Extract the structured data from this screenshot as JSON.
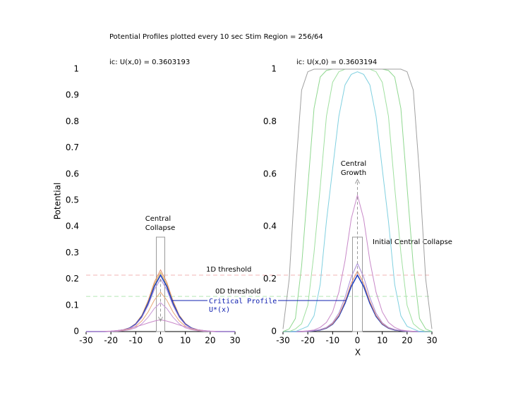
{
  "chart_data": [
    {
      "type": "line",
      "title": "Potential Profiles plotted every 10 sec  Stim Region = 256/64",
      "subtitle": "ic:  U(x,0) = 0.3603193",
      "ylabel": "Potential",
      "annotation": [
        "Central",
        "Collapse"
      ],
      "critical_label": [
        "Critical Profile",
        "U*(x)"
      ],
      "thresholds": [
        {
          "label": "1D threshold",
          "value": 0.215,
          "color": "#f2b4b4"
        },
        {
          "label": "0D threshold",
          "value": 0.134,
          "color": "#b4e6b4"
        }
      ],
      "stim": {
        "xlim": [
          -1.7,
          1.7
        ],
        "height": 0.36
      },
      "xlim": [
        -30,
        30
      ],
      "ylim": [
        0,
        1
      ],
      "xticks": [
        -30,
        -20,
        -10,
        0,
        10,
        20,
        30
      ],
      "yticks": [
        0,
        0.1,
        0.2,
        0.3,
        0.4,
        0.5,
        0.6,
        0.7,
        0.8,
        0.9,
        1
      ],
      "x": [
        -30,
        -27.5,
        -25,
        -22.5,
        -20,
        -17.5,
        -15,
        -12.5,
        -10,
        -7.5,
        -5,
        -2.5,
        0,
        2.5,
        5,
        7.5,
        10,
        12.5,
        15,
        17.5,
        20,
        22.5,
        25,
        27.5,
        30
      ],
      "series": [
        {
          "color": "#e08a6a",
          "values": [
            0,
            0,
            0,
            0,
            0.001,
            0.003,
            0.007,
            0.014,
            0.031,
            0.063,
            0.118,
            0.188,
            0.235,
            0.188,
            0.118,
            0.063,
            0.031,
            0.014,
            0.007,
            0.003,
            0.001,
            0,
            0,
            0,
            0
          ]
        },
        {
          "color": "#d8b050",
          "values": [
            0,
            0,
            0,
            0,
            0.001,
            0.003,
            0.007,
            0.014,
            0.029,
            0.061,
            0.113,
            0.18,
            0.225,
            0.18,
            0.113,
            0.061,
            0.029,
            0.014,
            0.007,
            0.003,
            0.001,
            0,
            0,
            0,
            0
          ]
        },
        {
          "color": "#2040c0",
          "values": [
            0,
            0,
            0,
            0,
            0.001,
            0.003,
            0.006,
            0.013,
            0.028,
            0.058,
            0.108,
            0.172,
            0.215,
            0.172,
            0.108,
            0.058,
            0.028,
            0.013,
            0.006,
            0.003,
            0.001,
            0,
            0,
            0,
            0
          ]
        },
        {
          "color": "#a88ad8",
          "values": [
            0,
            0,
            0,
            0,
            0.001,
            0.002,
            0.006,
            0.012,
            0.026,
            0.054,
            0.1,
            0.16,
            0.2,
            0.16,
            0.1,
            0.054,
            0.026,
            0.012,
            0.006,
            0.002,
            0.001,
            0,
            0,
            0,
            0
          ]
        },
        {
          "color": "#e8a878",
          "values": [
            0,
            0,
            0,
            0,
            0.001,
            0.002,
            0.005,
            0.009,
            0.02,
            0.041,
            0.075,
            0.12,
            0.15,
            0.12,
            0.075,
            0.041,
            0.02,
            0.009,
            0.005,
            0.002,
            0.001,
            0,
            0,
            0,
            0
          ]
        },
        {
          "color": "#c898d8",
          "values": [
            0,
            0,
            0,
            0,
            0.001,
            0.001,
            0.003,
            0.007,
            0.014,
            0.03,
            0.055,
            0.088,
            0.11,
            0.088,
            0.055,
            0.03,
            0.014,
            0.007,
            0.003,
            0.001,
            0.001,
            0,
            0,
            0,
            0
          ]
        },
        {
          "color": "#c888c8",
          "values": [
            0,
            0,
            0,
            0.001,
            0.002,
            0.004,
            0.007,
            0.012,
            0.018,
            0.025,
            0.033,
            0.04,
            0.045,
            0.04,
            0.033,
            0.025,
            0.018,
            0.012,
            0.007,
            0.004,
            0.002,
            0.001,
            0,
            0,
            0
          ]
        }
      ]
    },
    {
      "type": "line",
      "subtitle": "ic:  U(x,0) = 0.3603194",
      "xlabel": "X",
      "annotation": [
        "Central",
        "Growth"
      ],
      "annotation2": "Initial Central Collapse",
      "stim": {
        "xlim": [
          -2,
          2
        ],
        "height": 0.36
      },
      "xlim": [
        -30,
        30
      ],
      "ylim": [
        0,
        1
      ],
      "xticks": [
        -30,
        -20,
        -10,
        0,
        10,
        20,
        30
      ],
      "yticks": [
        0,
        0.2,
        0.4,
        0.6,
        0.8,
        1
      ],
      "x": [
        -30,
        -27.5,
        -25,
        -22.5,
        -20,
        -17.5,
        -15,
        -12.5,
        -10,
        -7.5,
        -5,
        -2.5,
        0,
        2.5,
        5,
        7.5,
        10,
        12.5,
        15,
        17.5,
        20,
        22.5,
        25,
        27.5,
        30
      ],
      "series": [
        {
          "color": "#2040c0",
          "values": [
            0,
            0,
            0,
            0,
            0.001,
            0.003,
            0.006,
            0.013,
            0.028,
            0.058,
            0.108,
            0.172,
            0.215,
            0.172,
            0.108,
            0.058,
            0.028,
            0.013,
            0.006,
            0.003,
            0.001,
            0,
            0,
            0,
            0
          ]
        },
        {
          "color": "#e08a6a",
          "values": [
            0,
            0,
            0,
            0,
            0.001,
            0.003,
            0.007,
            0.014,
            0.03,
            0.062,
            0.115,
            0.184,
            0.23,
            0.184,
            0.115,
            0.062,
            0.03,
            0.014,
            0.007,
            0.003,
            0.001,
            0,
            0,
            0,
            0
          ]
        },
        {
          "color": "#a88ad8",
          "values": [
            0,
            0,
            0,
            0.001,
            0.001,
            0.003,
            0.008,
            0.016,
            0.034,
            0.07,
            0.13,
            0.208,
            0.26,
            0.208,
            0.13,
            0.07,
            0.034,
            0.016,
            0.008,
            0.003,
            0.001,
            0.001,
            0,
            0,
            0
          ]
        },
        {
          "color": "#c888c8",
          "values": [
            0,
            0,
            0,
            0.001,
            0.003,
            0.006,
            0.016,
            0.035,
            0.075,
            0.15,
            0.27,
            0.43,
            0.52,
            0.43,
            0.27,
            0.15,
            0.075,
            0.035,
            0.016,
            0.006,
            0.003,
            0.001,
            0,
            0,
            0
          ]
        },
        {
          "color": "#80d0e0",
          "values": [
            0,
            0,
            0,
            0.01,
            0.02,
            0.06,
            0.18,
            0.42,
            0.62,
            0.82,
            0.94,
            0.98,
            0.99,
            0.98,
            0.94,
            0.82,
            0.62,
            0.42,
            0.18,
            0.06,
            0.02,
            0.01,
            0,
            0,
            0
          ]
        },
        {
          "color": "#a0e0a0",
          "values": [
            0,
            0,
            0.01,
            0.03,
            0.1,
            0.3,
            0.55,
            0.82,
            0.95,
            0.99,
            1,
            1,
            1,
            1,
            1,
            0.99,
            0.95,
            0.82,
            0.55,
            0.3,
            0.1,
            0.03,
            0.01,
            0,
            0
          ]
        },
        {
          "color": "#90d890",
          "values": [
            0,
            0.01,
            0.05,
            0.25,
            0.55,
            0.85,
            0.97,
            0.995,
            1,
            1,
            1,
            1,
            1,
            1,
            1,
            1,
            1,
            0.995,
            0.97,
            0.85,
            0.55,
            0.25,
            0.05,
            0.01,
            0
          ]
        },
        {
          "color": "#a0a0a0",
          "values": [
            0.01,
            0.2,
            0.6,
            0.92,
            0.99,
            1,
            1,
            1,
            1,
            1,
            1,
            1,
            1,
            1,
            1,
            1,
            1,
            1,
            1,
            1,
            0.99,
            0.92,
            0.6,
            0.2,
            0.01
          ]
        }
      ]
    }
  ]
}
